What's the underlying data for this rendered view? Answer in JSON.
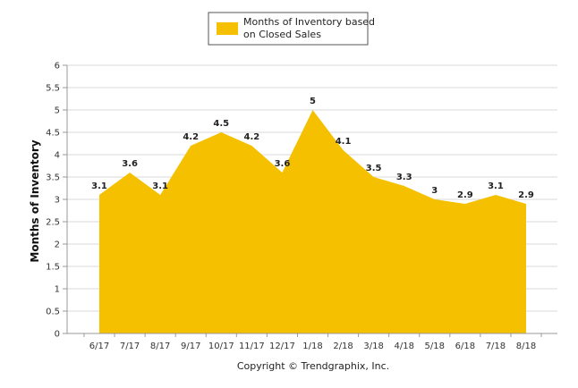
{
  "chart_data": {
    "type": "area",
    "categories": [
      "6/17",
      "7/17",
      "8/17",
      "9/17",
      "10/17",
      "11/17",
      "12/17",
      "1/18",
      "2/18",
      "3/18",
      "4/18",
      "5/18",
      "6/18",
      "7/18",
      "8/18"
    ],
    "series": [
      {
        "name": "Months of Inventory based on Closed Sales",
        "name_lines": [
          "Months of Inventory based",
          "on Closed Sales"
        ],
        "values": [
          3.1,
          3.6,
          3.1,
          4.2,
          4.5,
          4.2,
          3.6,
          5,
          4.1,
          3.5,
          3.3,
          3,
          2.9,
          3.1,
          2.9
        ],
        "labels": [
          "3.1",
          "3.6",
          "3.1",
          "4.2",
          "4.5",
          "4.2",
          "3.6",
          "5",
          "4.1",
          "3.5",
          "3.3",
          "3",
          "2.9",
          "3.1",
          "2.9"
        ],
        "color": "#F5C000"
      }
    ],
    "ylabel": "Months of Inventory",
    "xlabel": "",
    "ylim": [
      0,
      6
    ],
    "yticks": [
      "0",
      "0.5",
      "1",
      "1.5",
      "2",
      "2.5",
      "3",
      "3.5",
      "4",
      "4.5",
      "5",
      "5.5",
      "6"
    ],
    "grid": true,
    "legend": "top-center"
  },
  "footer": {
    "copyright": "Copyright © Trendgraphix, Inc."
  },
  "colors": {
    "area": "#F5C000",
    "grid": "#d9d9d9",
    "axis": "#999999"
  }
}
